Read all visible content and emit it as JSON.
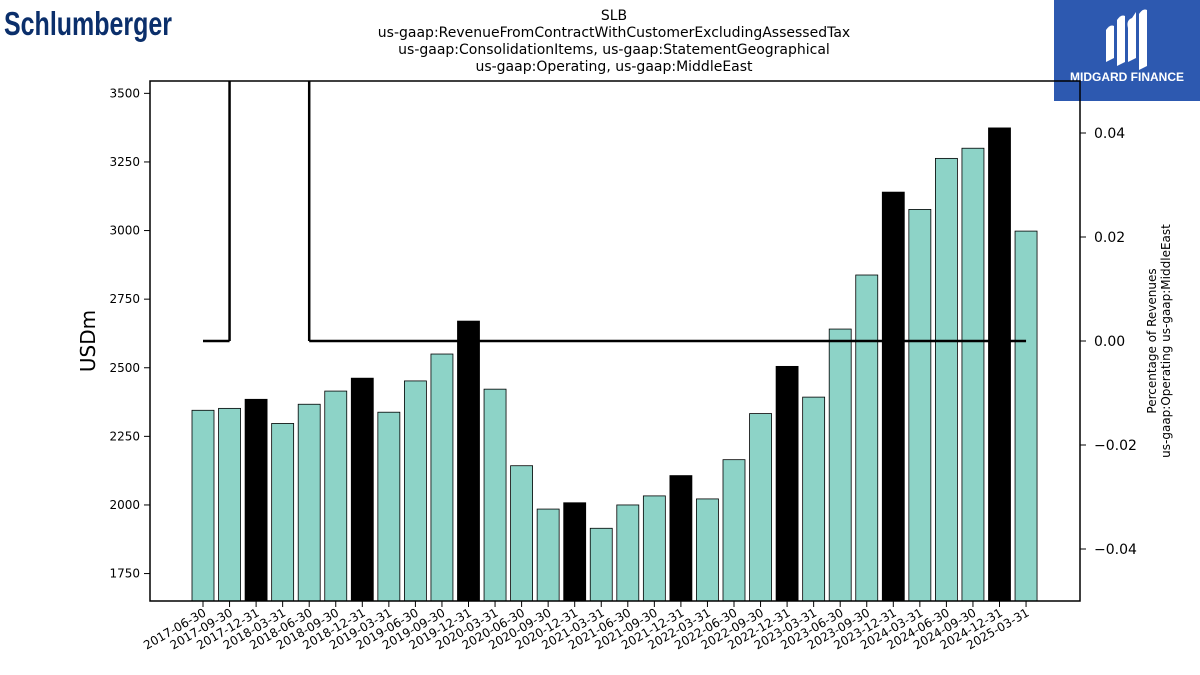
{
  "logo_left": {
    "text": "Schlumberger",
    "color": "#0b2f6b"
  },
  "logo_right": {
    "text": "MIDGARD FINANCE",
    "background": "#2d59b0"
  },
  "chart_data": {
    "type": "bar",
    "title": [
      "SLB",
      "us-gaap:RevenueFromContractWithCustomerExcludingAssessedTax",
      "us-gaap:ConsolidationItems, us-gaap:StatementGeographical",
      "us-gaap:Operating, us-gaap:MiddleEast"
    ],
    "ylabel": "USDm",
    "y2label": [
      "Percentage of Revenues",
      "us-gaap:Operating us-gaap:MiddleEast"
    ],
    "ylim": [
      1650,
      3545
    ],
    "y2lim": [
      -0.05,
      0.05
    ],
    "yticks": [
      1750,
      2000,
      2250,
      2500,
      2750,
      3000,
      3250,
      3500
    ],
    "y2ticks": [
      -0.04,
      -0.02,
      0.0,
      0.02,
      0.04
    ],
    "y2tick_labels": [
      "−0.04",
      "−0.02",
      "0.00",
      "0.02",
      "0.04"
    ],
    "categories": [
      "2017-06-30",
      "2017-09-30",
      "2017-12-31",
      "2018-03-31",
      "2018-06-30",
      "2018-09-30",
      "2018-12-31",
      "2019-03-31",
      "2019-06-30",
      "2019-09-30",
      "2019-12-31",
      "2020-03-31",
      "2020-06-30",
      "2020-09-30",
      "2020-12-31",
      "2021-03-31",
      "2021-06-30",
      "2021-09-30",
      "2021-12-31",
      "2022-03-31",
      "2022-06-30",
      "2022-09-30",
      "2022-12-31",
      "2023-03-31",
      "2023-06-30",
      "2023-09-30",
      "2023-12-31",
      "2024-03-31",
      "2024-06-30",
      "2024-09-30",
      "2024-12-31",
      "2025-03-31"
    ],
    "values": [
      2345,
      2352,
      2385,
      2297,
      2367,
      2415,
      2462,
      2338,
      2452,
      2550,
      2670,
      2422,
      2143,
      1985,
      2008,
      1915,
      2000,
      2033,
      2107,
      2022,
      2165,
      2333,
      2505,
      2393,
      2641,
      2838,
      3140,
      3077,
      3263,
      3300,
      3374,
      2998
    ],
    "highlight": [
      false,
      false,
      true,
      false,
      false,
      false,
      true,
      false,
      false,
      false,
      true,
      false,
      false,
      false,
      true,
      false,
      false,
      false,
      true,
      false,
      false,
      false,
      true,
      false,
      false,
      false,
      true,
      false,
      false,
      false,
      true,
      false
    ],
    "bar_color": "#8dd3c7",
    "highlight_color": "#000000",
    "line_series": {
      "name": "Percentage of Revenues",
      "values": [
        0.0,
        0.0,
        null,
        null,
        0.0,
        0.0,
        0.0,
        0.0,
        0.0,
        0.0,
        0.0,
        0.0,
        0.0,
        0.0,
        0.0,
        0.0,
        0.0,
        0.0,
        0.0,
        0.0,
        0.0,
        0.0,
        0.0,
        0.0,
        0.0,
        0.0,
        0.0,
        0.0,
        0.0,
        0.0,
        0.0,
        0.0
      ]
    }
  }
}
